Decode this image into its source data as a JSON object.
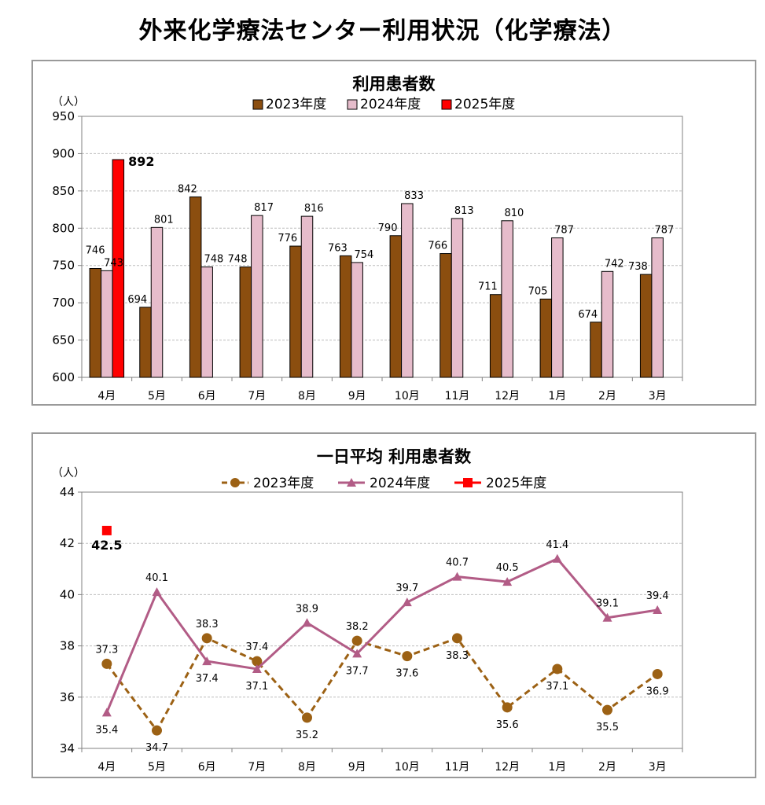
{
  "page": {
    "title": "外来化学療法センター利用状況（化学療法）"
  },
  "chart_data": [
    {
      "type": "bar",
      "title": "利用患者数",
      "unit_label": "（人）",
      "categories": [
        "4月",
        "5月",
        "6月",
        "7月",
        "8月",
        "9月",
        "10月",
        "11月",
        "12月",
        "1月",
        "2月",
        "3月"
      ],
      "ylim": [
        600,
        950
      ],
      "yticks": [
        600,
        650,
        700,
        750,
        800,
        850,
        900,
        950
      ],
      "grid": true,
      "legend_position": "top",
      "series": [
        {
          "name": "2023年度",
          "color": "#8B4E0F",
          "values": [
            746,
            694,
            842,
            748,
            776,
            763,
            790,
            766,
            711,
            705,
            674,
            738
          ]
        },
        {
          "name": "2024年度",
          "color": "#E6BCCB",
          "values": [
            743,
            801,
            748,
            817,
            816,
            754,
            833,
            813,
            810,
            787,
            742,
            787
          ]
        },
        {
          "name": "2025年度",
          "color": "#FF0000",
          "values": [
            892,
            null,
            null,
            null,
            null,
            null,
            null,
            null,
            null,
            null,
            null,
            null
          ]
        }
      ]
    },
    {
      "type": "line",
      "title": "一日平均 利用患者数",
      "unit_label": "（人）",
      "categories": [
        "4月",
        "5月",
        "6月",
        "7月",
        "8月",
        "9月",
        "10月",
        "11月",
        "12月",
        "1月",
        "2月",
        "3月"
      ],
      "ylim": [
        34,
        44
      ],
      "yticks": [
        34,
        36,
        38,
        40,
        42,
        44
      ],
      "grid": true,
      "legend_position": "top",
      "series": [
        {
          "name": "2023年度",
          "color": "#9C6114",
          "marker": "circle",
          "dashed": true,
          "values": [
            37.3,
            34.7,
            38.3,
            37.4,
            35.2,
            38.2,
            37.6,
            38.3,
            35.6,
            37.1,
            35.5,
            36.9
          ]
        },
        {
          "name": "2024年度",
          "color": "#B25C86",
          "marker": "triangle",
          "dashed": false,
          "values": [
            35.4,
            40.1,
            37.4,
            37.1,
            38.9,
            37.7,
            39.7,
            40.7,
            40.5,
            41.4,
            39.1,
            39.4
          ]
        },
        {
          "name": "2025年度",
          "color": "#FF0000",
          "marker": "square",
          "dashed": false,
          "values": [
            42.5,
            null,
            null,
            null,
            null,
            null,
            null,
            null,
            null,
            null,
            null,
            null
          ]
        }
      ]
    }
  ]
}
